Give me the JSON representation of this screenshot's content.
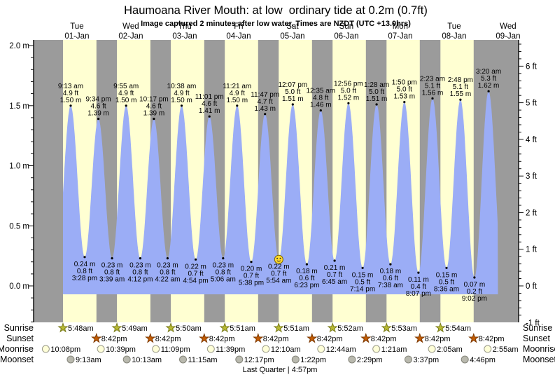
{
  "header": {
    "title": "Haumoana River Mouth: at low  ordinary tide at 0.2m (0.7ft)",
    "subtitle": "Image captured 2 minutes after low water. Times are NZDT (UTC +13.0hrs)"
  },
  "chart_data": {
    "type": "area",
    "x_axis_days": [
      {
        "name": "Tue",
        "date": "01-Jan"
      },
      {
        "name": "Wed",
        "date": "02-Jan"
      },
      {
        "name": "Thu",
        "date": "03-Jan"
      },
      {
        "name": "Fri",
        "date": "04-Jan"
      },
      {
        "name": "Sat",
        "date": "05-Jan"
      },
      {
        "name": "Sun",
        "date": "06-Jan"
      },
      {
        "name": "Mon",
        "date": "07-Jan"
      },
      {
        "name": "Tue",
        "date": "08-Jan"
      },
      {
        "name": "Wed",
        "date": "09-Jan"
      }
    ],
    "left_axis_ticks": [
      {
        "v": 0.0,
        "label": "0.0 m"
      },
      {
        "v": 0.5,
        "label": "0.5 m"
      },
      {
        "v": 1.0,
        "label": "1.0 m"
      },
      {
        "v": 1.5,
        "label": "1.5 m"
      },
      {
        "v": 2.0,
        "label": "2.0 m"
      }
    ],
    "right_axis_ticks": [
      {
        "ft": -1,
        "label": "-1 ft"
      },
      {
        "ft": 0,
        "label": "0 ft"
      },
      {
        "ft": 1,
        "label": "1 ft"
      },
      {
        "ft": 2,
        "label": "2 ft"
      },
      {
        "ft": 3,
        "label": "3 ft"
      },
      {
        "ft": 4,
        "label": "4 ft"
      },
      {
        "ft": 5,
        "label": "5 ft"
      },
      {
        "ft": 6,
        "label": "6 ft"
      }
    ],
    "ylim_m": [
      -0.305,
      2.05
    ],
    "high_tides": [
      {
        "day": 0,
        "time": "9:13 am",
        "ft": "4.9 ft",
        "m": "1.50 m",
        "height_m": 1.5
      },
      {
        "day": 0,
        "time": "9:34 pm",
        "ft": "4.6 ft",
        "m": "1.39 m",
        "height_m": 1.39
      },
      {
        "day": 1,
        "time": "9:55 am",
        "ft": "4.9 ft",
        "m": "1.50 m",
        "height_m": 1.5
      },
      {
        "day": 1,
        "time": "10:17 pm",
        "ft": "4.6 ft",
        "m": "1.39 m",
        "height_m": 1.39
      },
      {
        "day": 2,
        "time": "10:38 am",
        "ft": "4.9 ft",
        "m": "1.50 m",
        "height_m": 1.5
      },
      {
        "day": 2,
        "time": "11:01 pm",
        "ft": "4.6 ft",
        "m": "1.41 m",
        "height_m": 1.41
      },
      {
        "day": 3,
        "time": "11:21 am",
        "ft": "4.9 ft",
        "m": "1.50 m",
        "height_m": 1.5
      },
      {
        "day": 3,
        "time": "11:47 pm",
        "ft": "4.7 ft",
        "m": "1.43 m",
        "height_m": 1.43
      },
      {
        "day": 4,
        "time": "12:07 pm",
        "ft": "5.0 ft",
        "m": "1.51 m",
        "height_m": 1.51
      },
      {
        "day": 5,
        "time": "12:35 am",
        "ft": "4.8 ft",
        "m": "1.46 m",
        "height_m": 1.46
      },
      {
        "day": 5,
        "time": "12:56 pm",
        "ft": "5.0 ft",
        "m": "1.52 m",
        "height_m": 1.52
      },
      {
        "day": 6,
        "time": "1:28 am",
        "ft": "5.0 ft",
        "m": "1.51 m",
        "height_m": 1.51
      },
      {
        "day": 6,
        "time": "1:50 pm",
        "ft": "5.0 ft",
        "m": "1.53 m",
        "height_m": 1.53
      },
      {
        "day": 7,
        "time": "2:23 am",
        "ft": "5.1 ft",
        "m": "1.56 m",
        "height_m": 1.56
      },
      {
        "day": 7,
        "time": "2:48 pm",
        "ft": "5.1 ft",
        "m": "1.55 m",
        "height_m": 1.55
      },
      {
        "day": 8,
        "time": "3:20 am",
        "ft": "5.3 ft",
        "m": "1.62 m",
        "height_m": 1.62
      }
    ],
    "low_tides": [
      {
        "day": 0,
        "time": "3:28 pm",
        "ft": "0.8 ft",
        "m": "0.24 m",
        "height_m": 0.24
      },
      {
        "day": 1,
        "time": "3:39 am",
        "ft": "0.8 ft",
        "m": "0.23 m",
        "height_m": 0.23
      },
      {
        "day": 1,
        "time": "4:12 pm",
        "ft": "0.8 ft",
        "m": "0.23 m",
        "height_m": 0.23
      },
      {
        "day": 2,
        "time": "4:22 am",
        "ft": "0.8 ft",
        "m": "0.23 m",
        "height_m": 0.23
      },
      {
        "day": 2,
        "time": "4:54 pm",
        "ft": "0.7 ft",
        "m": "0.22 m",
        "height_m": 0.22
      },
      {
        "day": 3,
        "time": "5:06 am",
        "ft": "0.8 ft",
        "m": "0.23 m",
        "height_m": 0.23
      },
      {
        "day": 3,
        "time": "5:38 pm",
        "ft": "0.7 ft",
        "m": "0.20 m",
        "height_m": 0.2
      },
      {
        "day": 4,
        "time": "5:54 am",
        "ft": "0.7 ft",
        "m": "0.22 m",
        "height_m": 0.22
      },
      {
        "day": 4,
        "time": "6:23 pm",
        "ft": "0.6 ft",
        "m": "0.18 m",
        "height_m": 0.18
      },
      {
        "day": 5,
        "time": "6:45 am",
        "ft": "0.7 ft",
        "m": "0.21 m",
        "height_m": 0.21
      },
      {
        "day": 5,
        "time": "7:14 pm",
        "ft": "0.5 ft",
        "m": "0.15 m",
        "height_m": 0.15
      },
      {
        "day": 6,
        "time": "7:38 am",
        "ft": "0.6 ft",
        "m": "0.18 m",
        "height_m": 0.18
      },
      {
        "day": 6,
        "time": "8:07 pm",
        "ft": "0.4 ft",
        "m": "0.11 m",
        "height_m": 0.11
      },
      {
        "day": 7,
        "time": "8:36 am",
        "ft": "0.5 ft",
        "m": "0.15 m",
        "height_m": 0.15
      },
      {
        "day": 7,
        "time": "9:02 pm",
        "ft": "0.2 ft",
        "m": "0.07 m",
        "height_m": 0.07
      }
    ],
    "current_marker": {
      "low_index": 7
    }
  },
  "astro": {
    "rows": [
      {
        "key": "sunrise",
        "label": "Sunrise",
        "icon": "sunrise-star",
        "entries": [
          {
            "day": 0,
            "time": "5:48am"
          },
          {
            "day": 1,
            "time": "5:49am"
          },
          {
            "day": 2,
            "time": "5:50am"
          },
          {
            "day": 3,
            "time": "5:51am"
          },
          {
            "day": 4,
            "time": "5:51am"
          },
          {
            "day": 5,
            "time": "5:52am"
          },
          {
            "day": 6,
            "time": "5:53am"
          },
          {
            "day": 7,
            "time": "5:54am"
          }
        ]
      },
      {
        "key": "sunset",
        "label": "Sunset",
        "icon": "sunset-star",
        "entries": [
          {
            "day": 0,
            "time": "8:42pm"
          },
          {
            "day": 1,
            "time": "8:42pm"
          },
          {
            "day": 2,
            "time": "8:42pm"
          },
          {
            "day": 3,
            "time": "8:42pm"
          },
          {
            "day": 4,
            "time": "8:42pm"
          },
          {
            "day": 5,
            "time": "8:42pm"
          },
          {
            "day": 6,
            "time": "8:42pm"
          },
          {
            "day": 7,
            "time": "8:42pm"
          }
        ]
      },
      {
        "key": "moonrise",
        "label": "Moonrise",
        "icon": "moonrise-circle",
        "entries": [
          {
            "day": -1,
            "time": "10:08pm"
          },
          {
            "day": 0,
            "time": "10:39pm"
          },
          {
            "day": 1,
            "time": "11:09pm"
          },
          {
            "day": 2,
            "time": "11:39pm"
          },
          {
            "day": 4,
            "time": "12:10am"
          },
          {
            "day": 5,
            "time": "12:44am"
          },
          {
            "day": 6,
            "time": "1:21am"
          },
          {
            "day": 7,
            "time": "2:05am"
          },
          {
            "day": 8,
            "time": "2:55am"
          }
        ]
      },
      {
        "key": "moonset",
        "label": "Moonset",
        "icon": "moonset-circle",
        "entries": [
          {
            "day": 0,
            "time": "9:13am"
          },
          {
            "day": 1,
            "time": "10:13am"
          },
          {
            "day": 2,
            "time": "11:15am"
          },
          {
            "day": 3,
            "time": "12:17pm"
          },
          {
            "day": 4,
            "time": "1:22pm"
          },
          {
            "day": 5,
            "time": "2:29pm"
          },
          {
            "day": 6,
            "time": "3:37pm"
          },
          {
            "day": 7,
            "time": "4:46pm"
          }
        ]
      }
    ]
  },
  "footer": {
    "moon_phase": "Last Quarter | 4:57pm"
  },
  "colors": {
    "night_band": "#9b9b9b",
    "day_band": "#ffffd2",
    "tide_fill": "#9badf6",
    "day_label_red": "#e03535",
    "sunrise_star": "#b8ba33",
    "sunrise_star_edge": "#787a18",
    "sunset_star": "#c25c04",
    "sunset_star_edge": "#7e3a00",
    "moonrise_fill": "#ffffd8",
    "moonrise_edge": "#9a9a8a",
    "moonset_fill": "#b9b9ae",
    "moonset_edge": "#84847a",
    "marker_fill": "#ffd92e",
    "marker_edge": "#7a6500",
    "axis": "#111111"
  }
}
